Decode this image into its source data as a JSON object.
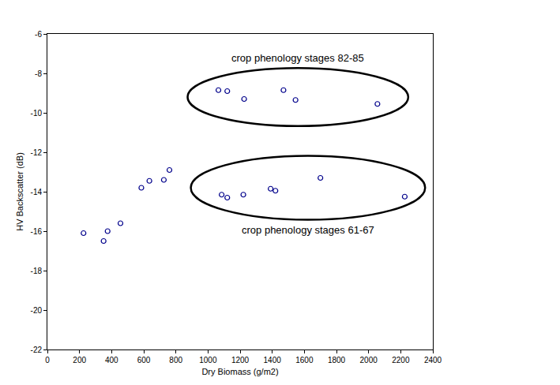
{
  "chart_data": {
    "type": "scatter",
    "x_label": "Dry Biomass (g/m2)",
    "y_label": "HV Backscatter (dB)",
    "xlim": [
      0,
      2400
    ],
    "xticks": [
      0,
      200,
      400,
      600,
      800,
      1000,
      1200,
      1400,
      1600,
      1800,
      2000,
      2200,
      2400
    ],
    "ylim": [
      -22,
      -6
    ],
    "yticks": [
      -22,
      -20,
      -18,
      -16,
      -14,
      -12,
      -10,
      -8,
      -6
    ],
    "grid": false,
    "color": "#00008b",
    "marker": "circle-open",
    "series": [
      {
        "x": [
          225,
          350,
          375,
          455,
          585,
          635,
          725,
          760
        ],
        "values": [
          -16.1,
          -16.5,
          -16.0,
          -15.6,
          -13.8,
          -13.45,
          -13.4,
          -12.9
        ]
      },
      {
        "x": [
          1065,
          1120,
          1225,
          1470,
          1545,
          2055
        ],
        "values": [
          -8.85,
          -8.9,
          -9.3,
          -8.85,
          -9.35,
          -9.55
        ],
        "annotation": "crop phenology stages 82-85"
      },
      {
        "x": [
          1085,
          1120,
          1220,
          1390,
          1420,
          1700,
          2225
        ],
        "values": [
          -14.15,
          -14.3,
          -14.15,
          -13.85,
          -13.95,
          -13.3,
          -14.25
        ],
        "annotation": "crop phenology stages 61-67"
      }
    ]
  }
}
